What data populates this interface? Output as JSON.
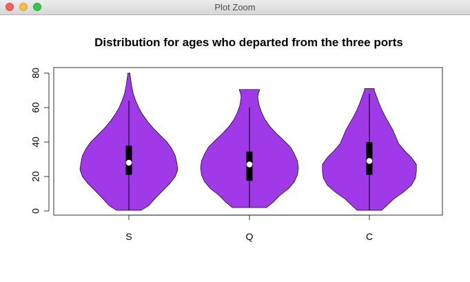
{
  "window": {
    "title": "Plot Zoom"
  },
  "chart_data": {
    "type": "violin",
    "title": "Distribution for ages who departed from the three ports",
    "xlabel": "",
    "ylabel": "",
    "categories": [
      "S",
      "Q",
      "C"
    ],
    "yticks": [
      "0",
      "20",
      "40",
      "60",
      "80"
    ],
    "ylim": [
      0,
      80
    ],
    "fill_color": "#a03ae8",
    "violins": [
      {
        "name": "S",
        "min": 0.4,
        "max": 80,
        "q1": 21,
        "median": 28,
        "q3": 38,
        "whisker_low": 0.4,
        "whisker_high": 64,
        "profile": [
          [
            0.4,
            0.25
          ],
          [
            3,
            0.4
          ],
          [
            8,
            0.56
          ],
          [
            12,
            0.7
          ],
          [
            16,
            0.84
          ],
          [
            20,
            0.95
          ],
          [
            24,
            1.0
          ],
          [
            28,
            0.98
          ],
          [
            32,
            0.95
          ],
          [
            36,
            0.88
          ],
          [
            40,
            0.78
          ],
          [
            44,
            0.64
          ],
          [
            48,
            0.5
          ],
          [
            52,
            0.38
          ],
          [
            56,
            0.28
          ],
          [
            60,
            0.2
          ],
          [
            64,
            0.14
          ],
          [
            68,
            0.09
          ],
          [
            72,
            0.06
          ],
          [
            76,
            0.04
          ],
          [
            80,
            0.02
          ]
        ]
      },
      {
        "name": "Q",
        "min": 2,
        "max": 70.5,
        "q1": 17.5,
        "median": 27,
        "q3": 34.5,
        "whisker_low": 2,
        "whisker_high": 60,
        "profile": [
          [
            2,
            0.35
          ],
          [
            5,
            0.48
          ],
          [
            9,
            0.62
          ],
          [
            13,
            0.8
          ],
          [
            17,
            0.92
          ],
          [
            21,
            0.98
          ],
          [
            25,
            1.0
          ],
          [
            29,
            0.98
          ],
          [
            33,
            0.92
          ],
          [
            37,
            0.84
          ],
          [
            41,
            0.7
          ],
          [
            45,
            0.55
          ],
          [
            49,
            0.42
          ],
          [
            53,
            0.32
          ],
          [
            57,
            0.25
          ],
          [
            61,
            0.2
          ],
          [
            64,
            0.18
          ],
          [
            66,
            0.17
          ],
          [
            68,
            0.18
          ],
          [
            70.5,
            0.21
          ]
        ]
      },
      {
        "name": "C",
        "min": 0.4,
        "max": 71,
        "q1": 21,
        "median": 29,
        "q3": 40,
        "whisker_low": 0.4,
        "whisker_high": 68,
        "profile": [
          [
            0.4,
            0.25
          ],
          [
            3,
            0.35
          ],
          [
            7,
            0.5
          ],
          [
            11,
            0.7
          ],
          [
            15,
            0.86
          ],
          [
            19,
            0.94
          ],
          [
            23,
            0.96
          ],
          [
            27,
            0.96
          ],
          [
            31,
            0.86
          ],
          [
            35,
            0.72
          ],
          [
            39,
            0.6
          ],
          [
            43,
            0.54
          ],
          [
            47,
            0.48
          ],
          [
            51,
            0.4
          ],
          [
            55,
            0.32
          ],
          [
            59,
            0.25
          ],
          [
            63,
            0.19
          ],
          [
            67,
            0.14
          ],
          [
            70,
            0.1
          ],
          [
            71,
            0.1
          ]
        ]
      }
    ],
    "grid": false,
    "legend": "none"
  }
}
